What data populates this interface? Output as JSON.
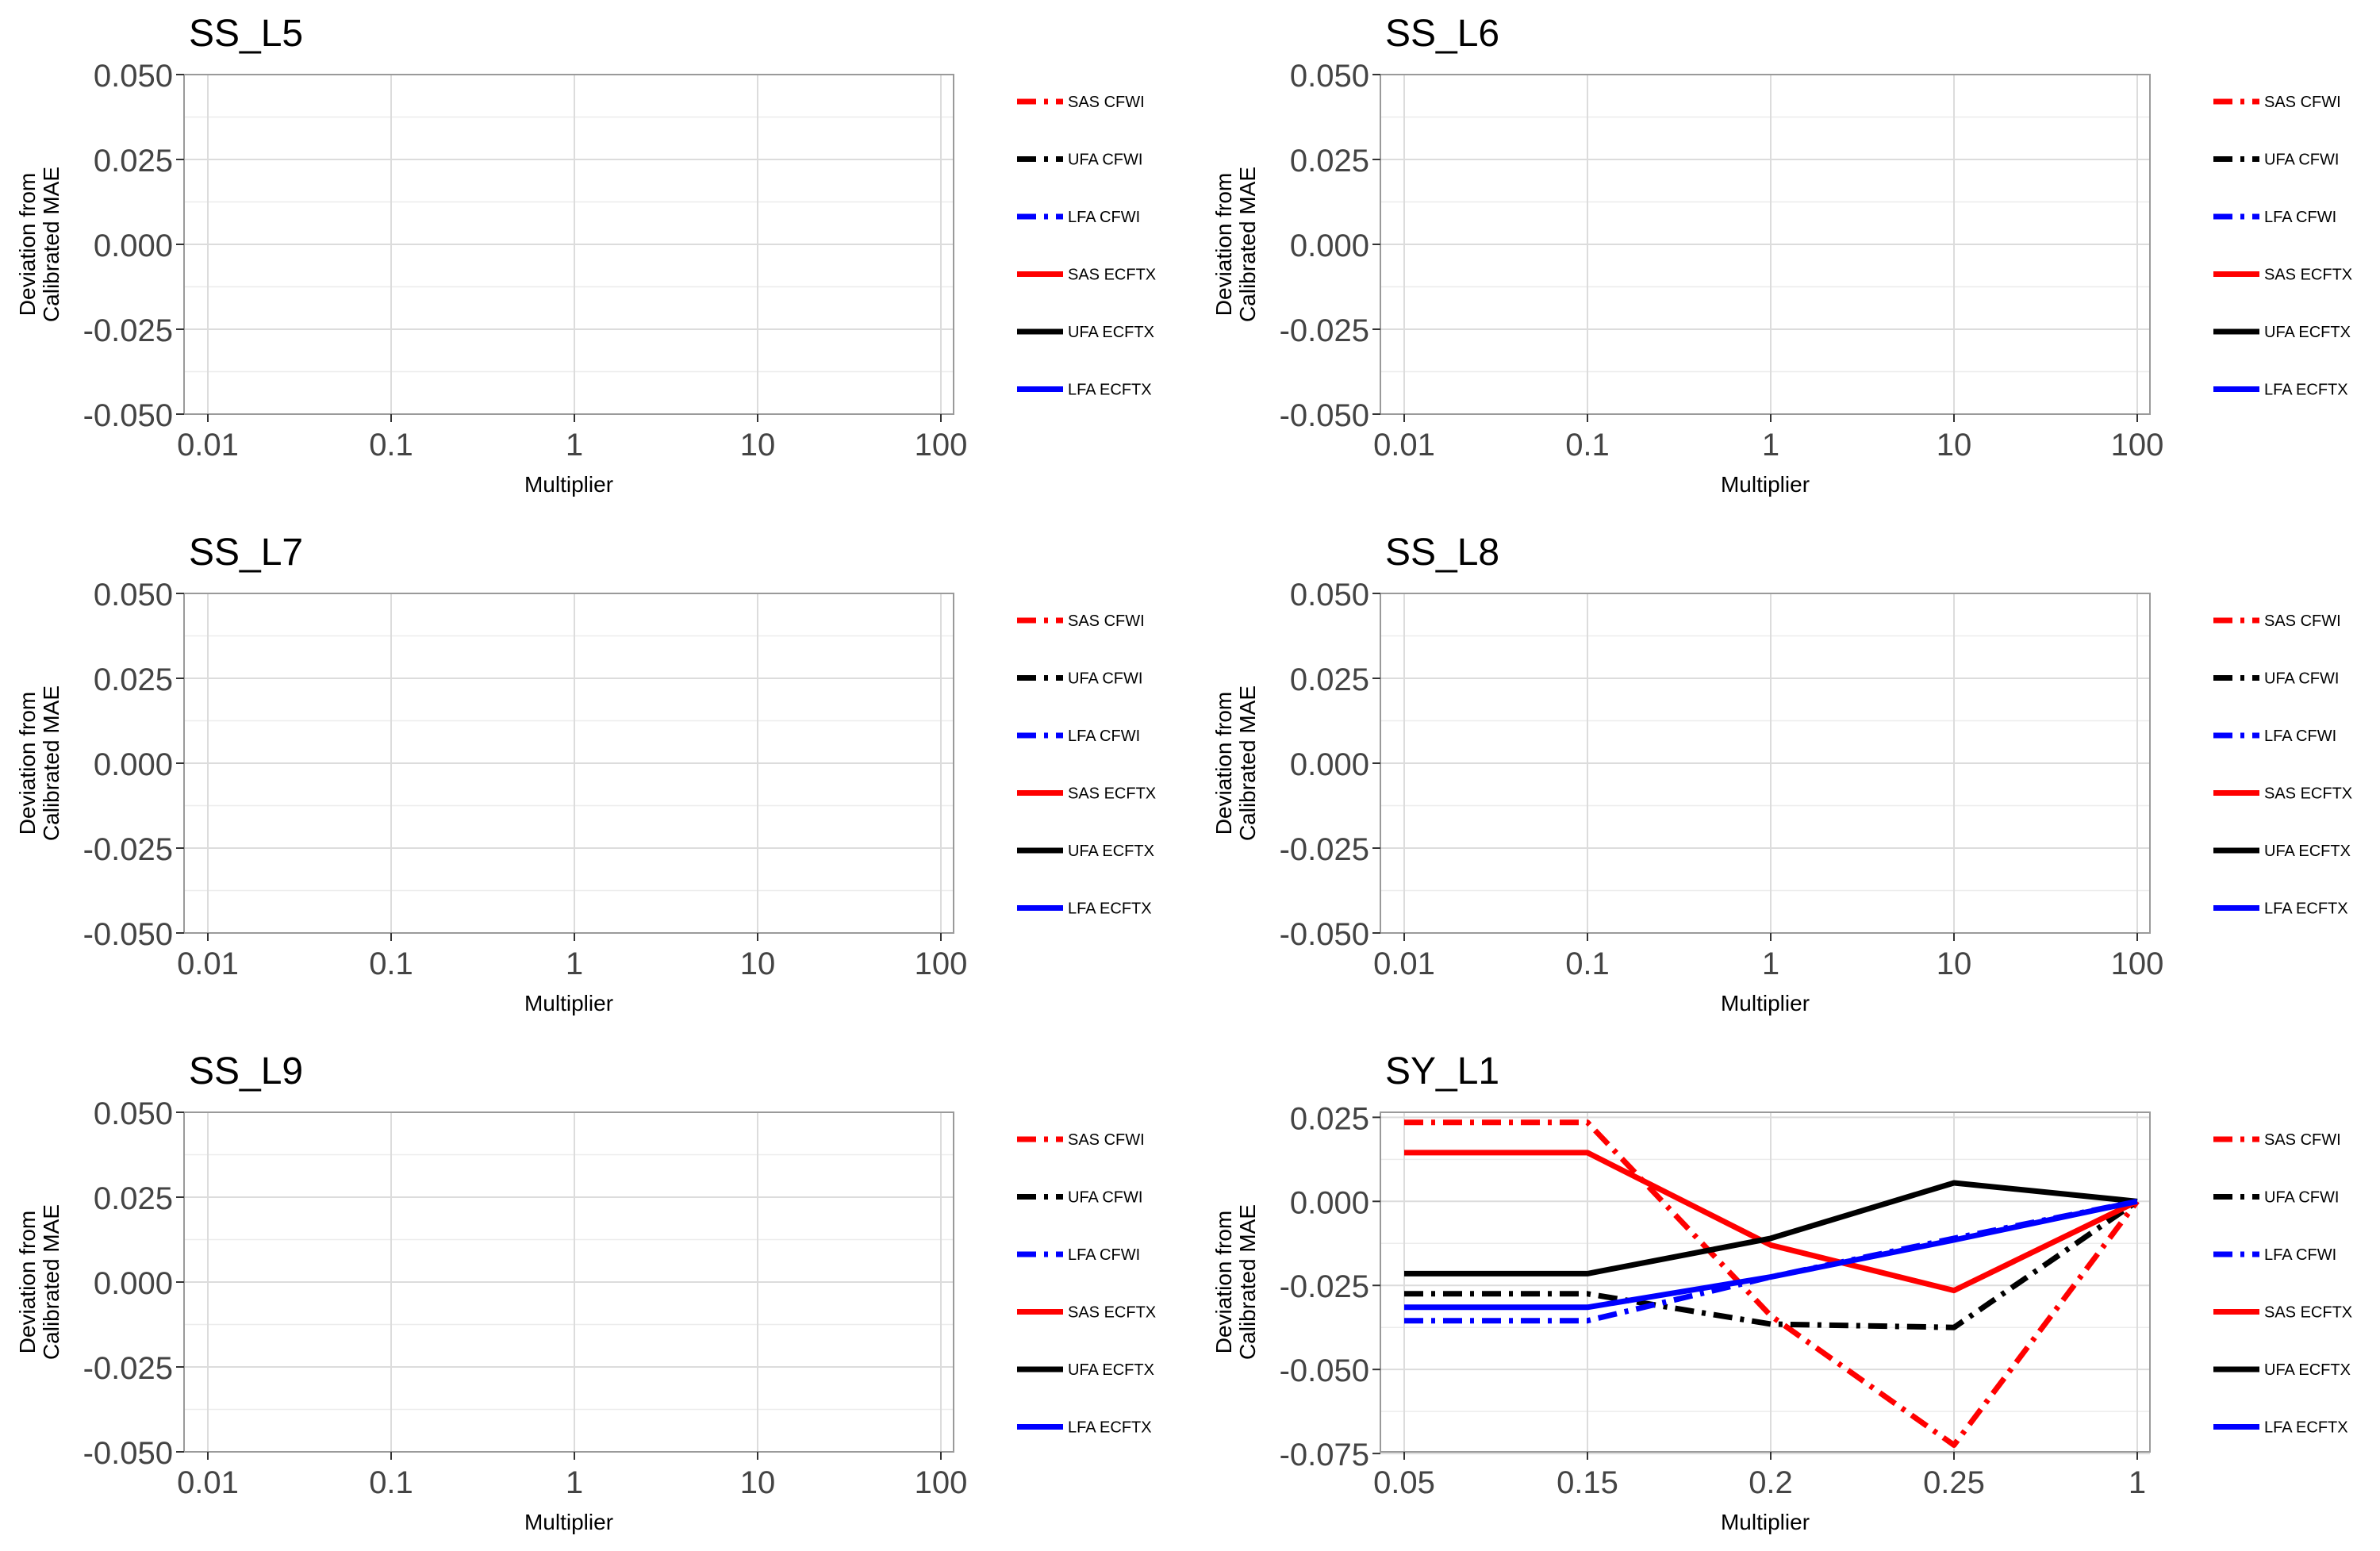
{
  "chart_data": [
    {
      "type": "line",
      "title": "SS_L5",
      "xlabel": "Multiplier",
      "ylabel": [
        "Deviation from",
        "Calibrated MAE"
      ],
      "x_ticks": [
        "0.01",
        "0.1",
        "1",
        "10",
        "100"
      ],
      "y_ticks": [
        "0.050",
        "0.025",
        "0.000",
        "-0.025",
        "-0.050"
      ],
      "ylim": [
        -0.05,
        0.05
      ],
      "grid": true,
      "legend_position": "right",
      "series": []
    },
    {
      "type": "line",
      "title": "SS_L6",
      "xlabel": "Multiplier",
      "ylabel": [
        "Deviation from",
        "Calibrated MAE"
      ],
      "x_ticks": [
        "0.01",
        "0.1",
        "1",
        "10",
        "100"
      ],
      "y_ticks": [
        "0.050",
        "0.025",
        "0.000",
        "-0.025",
        "-0.050"
      ],
      "ylim": [
        -0.05,
        0.05
      ],
      "grid": true,
      "legend_position": "right",
      "series": []
    },
    {
      "type": "line",
      "title": "SS_L7",
      "xlabel": "Multiplier",
      "ylabel": [
        "Deviation from",
        "Calibrated MAE"
      ],
      "x_ticks": [
        "0.01",
        "0.1",
        "1",
        "10",
        "100"
      ],
      "y_ticks": [
        "0.050",
        "0.025",
        "0.000",
        "-0.025",
        "-0.050"
      ],
      "ylim": [
        -0.05,
        0.05
      ],
      "grid": true,
      "legend_position": "right",
      "series": []
    },
    {
      "type": "line",
      "title": "SS_L8",
      "xlabel": "Multiplier",
      "ylabel": [
        "Deviation from",
        "Calibrated MAE"
      ],
      "x_ticks": [
        "0.01",
        "0.1",
        "1",
        "10",
        "100"
      ],
      "y_ticks": [
        "0.050",
        "0.025",
        "0.000",
        "-0.025",
        "-0.050"
      ],
      "ylim": [
        -0.05,
        0.05
      ],
      "grid": true,
      "legend_position": "right",
      "series": []
    },
    {
      "type": "line",
      "title": "SS_L9",
      "xlabel": "Multiplier",
      "ylabel": [
        "Deviation from",
        "Calibrated MAE"
      ],
      "x_ticks": [
        "0.01",
        "0.1",
        "1",
        "10",
        "100"
      ],
      "y_ticks": [
        "0.050",
        "0.025",
        "0.000",
        "-0.025",
        "-0.050"
      ],
      "ylim": [
        -0.05,
        0.05
      ],
      "grid": true,
      "legend_position": "right",
      "series": []
    },
    {
      "type": "line",
      "title": "SY_L1",
      "xlabel": "Multiplier",
      "ylabel": [
        "Deviation from",
        "Calibrated MAE"
      ],
      "x_ticks": [
        "0.05",
        "0.15",
        "0.2",
        "0.25",
        "1"
      ],
      "y_ticks": [
        "0.025",
        "0.000",
        "-0.025",
        "-0.050",
        "-0.075"
      ],
      "ylim": [
        -0.0745,
        0.0265
      ],
      "grid": true,
      "legend_position": "right",
      "series": [
        {
          "name": "SAS CFWI",
          "color": "#ff0000",
          "style": "dotdash",
          "values": [
            0.0235,
            0.0235,
            -0.034,
            -0.0725,
            0.0
          ]
        },
        {
          "name": "UFA CFWI",
          "color": "#000000",
          "style": "dotdash",
          "values": [
            -0.0275,
            -0.0275,
            -0.0365,
            -0.0375,
            0.0
          ]
        },
        {
          "name": "LFA CFWI",
          "color": "#0000ff",
          "style": "dotdash",
          "values": [
            -0.0355,
            -0.0355,
            -0.0225,
            -0.011,
            0.0
          ]
        },
        {
          "name": "SAS ECFTX",
          "color": "#ff0000",
          "style": "solid",
          "values": [
            0.0145,
            0.0145,
            -0.013,
            -0.0265,
            0.0
          ]
        },
        {
          "name": "UFA ECFTX",
          "color": "#000000",
          "style": "solid",
          "values": [
            -0.0215,
            -0.0215,
            -0.011,
            0.0055,
            0.0
          ]
        },
        {
          "name": "LFA ECFTX",
          "color": "#0000ff",
          "style": "solid",
          "values": [
            -0.0315,
            -0.0315,
            -0.0225,
            -0.0115,
            0.0
          ]
        }
      ]
    }
  ],
  "legend": {
    "items": [
      {
        "label": "SAS CFWI",
        "color": "#ff0000",
        "style": "dotdash"
      },
      {
        "label": "UFA CFWI",
        "color": "#000000",
        "style": "dotdash"
      },
      {
        "label": "LFA CFWI",
        "color": "#0000ff",
        "style": "dotdash"
      },
      {
        "label": "SAS ECFTX",
        "color": "#ff0000",
        "style": "solid"
      },
      {
        "label": "UFA ECFTX",
        "color": "#000000",
        "style": "solid"
      },
      {
        "label": "LFA ECFTX",
        "color": "#0000ff",
        "style": "solid"
      }
    ]
  }
}
